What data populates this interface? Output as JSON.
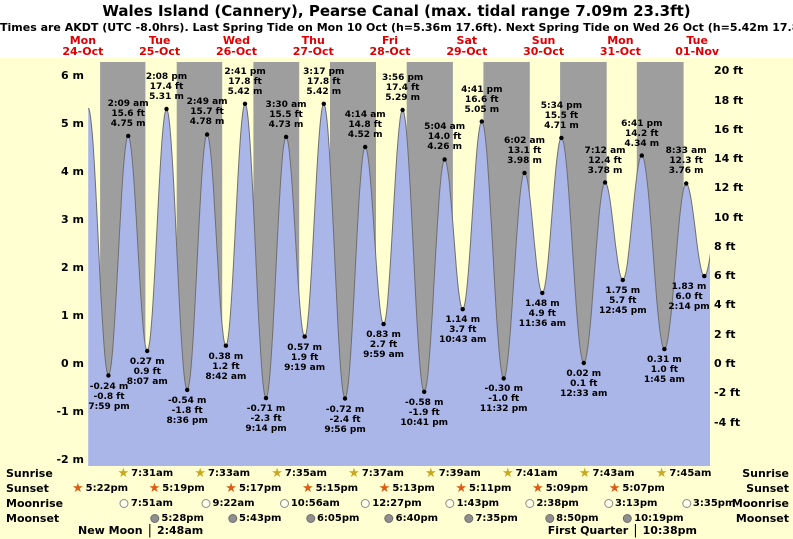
{
  "title": "Wales Island (Cannery), Pearse Canal (max. tidal range 7.09m 23.3ft)",
  "subtitle": "Times are AKDT (UTC -8.0hrs). Last Spring Tide on Mon 10 Oct (h=5.36m 17.6ft). Next Spring Tide on Wed 26 Oct (h=5.42m 17.8ft)",
  "colors": {
    "page_bg": "#ffffff",
    "panel_bg": "#ffffd2",
    "night": "#9e9e9e",
    "tide_fill": "#aab5e8",
    "tide_stroke": "#6f6f6f",
    "day_label": "#dd0000",
    "sunrise_icon": "#c8a820",
    "sunset_icon": "#e05a14",
    "moonrise_icon": "#fffde9",
    "moonset_icon": "#8f8f8f"
  },
  "icons": {
    "sunrise": {
      "name": "sunrise-star-icon",
      "glyph": "★"
    },
    "sunset": {
      "name": "sunset-star-icon",
      "glyph": "★"
    },
    "moonrise": {
      "name": "moonrise-icon",
      "shape": "circle"
    },
    "moonset": {
      "name": "moonset-icon",
      "shape": "circle"
    }
  },
  "chart_data": {
    "type": "area",
    "series_name": "Tide height",
    "title": "Wales Island (Cannery), Pearse Canal tide curve",
    "y_axis_left": {
      "unit": "m",
      "range": [
        -2,
        6
      ],
      "ticks": [
        {
          "v": 6,
          "label": "6 m"
        },
        {
          "v": 5,
          "label": "5 m"
        },
        {
          "v": 4,
          "label": "4 m"
        },
        {
          "v": 3,
          "label": "3 m"
        },
        {
          "v": 2,
          "label": "2 m"
        },
        {
          "v": 1,
          "label": "1 m"
        },
        {
          "v": 0,
          "label": "0 m"
        },
        {
          "v": -1,
          "label": "-1 m"
        },
        {
          "v": -2,
          "label": "-2 m"
        }
      ]
    },
    "y_axis_right": {
      "unit": "ft",
      "range": [
        -4,
        20
      ],
      "ticks": [
        {
          "v": 20,
          "label": "20 ft"
        },
        {
          "v": 18,
          "label": "18 ft"
        },
        {
          "v": 16,
          "label": "16 ft"
        },
        {
          "v": 14,
          "label": "14 ft"
        },
        {
          "v": 12,
          "label": "12 ft"
        },
        {
          "v": 10,
          "label": "10 ft"
        },
        {
          "v": 8,
          "label": "8 ft"
        },
        {
          "v": 6,
          "label": "6 ft"
        },
        {
          "v": 4,
          "label": "4 ft"
        },
        {
          "v": 2,
          "label": "2 ft"
        },
        {
          "v": 0,
          "label": "0 ft"
        },
        {
          "v": -2,
          "label": "-2 ft"
        },
        {
          "v": -4,
          "label": "-4 ft"
        }
      ]
    },
    "x_axis": {
      "days": [
        {
          "name": "Mon",
          "date": "24-Oct"
        },
        {
          "name": "Tue",
          "date": "25-Oct"
        },
        {
          "name": "Wed",
          "date": "26-Oct"
        },
        {
          "name": "Thu",
          "date": "27-Oct"
        },
        {
          "name": "Fri",
          "date": "28-Oct"
        },
        {
          "name": "Sat",
          "date": "29-Oct"
        },
        {
          "name": "Sun",
          "date": "30-Oct"
        },
        {
          "name": "Mon",
          "date": "31-Oct"
        },
        {
          "name": "Tue",
          "date": "01-Nov"
        }
      ]
    },
    "tides": [
      {
        "day": 0,
        "time": "1:40 pm",
        "m": 5.33,
        "type": "high",
        "hidden": true
      },
      {
        "day": 0,
        "time": "7:59 pm",
        "m": -0.24,
        "type": "low",
        "lines": [
          "-0.24 m",
          "-0.8 ft",
          "7:59 pm"
        ]
      },
      {
        "day": 1,
        "time": "2:09 am",
        "m": 4.75,
        "type": "high",
        "lines": [
          "2:09 am",
          "15.6 ft",
          "4.75 m"
        ]
      },
      {
        "day": 1,
        "time": "8:07 am",
        "m": 0.27,
        "type": "low",
        "lines": [
          "0.27 m",
          "0.9 ft",
          "8:07 am"
        ]
      },
      {
        "day": 1,
        "time": "2:08 pm",
        "m": 5.31,
        "type": "high",
        "lines": [
          "2:08 pm",
          "17.4 ft",
          "5.31 m"
        ]
      },
      {
        "day": 1,
        "time": "8:36 pm",
        "m": -0.54,
        "type": "low",
        "lines": [
          "-0.54 m",
          "-1.8 ft",
          "8:36 pm"
        ]
      },
      {
        "day": 2,
        "time": "2:49 am",
        "m": 4.78,
        "type": "high",
        "lines": [
          "2:49 am",
          "15.7 ft",
          "4.78 m"
        ]
      },
      {
        "day": 2,
        "time": "8:42 am",
        "m": 0.38,
        "type": "low",
        "lines": [
          "0.38 m",
          "1.2 ft",
          "8:42 am"
        ]
      },
      {
        "day": 2,
        "time": "2:41 pm",
        "m": 5.42,
        "type": "high",
        "lines": [
          "2:41 pm",
          "17.8 ft",
          "5.42 m"
        ]
      },
      {
        "day": 2,
        "time": "9:14 pm",
        "m": -0.71,
        "type": "low",
        "lines": [
          "-0.71 m",
          "-2.3 ft",
          "9:14 pm"
        ]
      },
      {
        "day": 3,
        "time": "3:30 am",
        "m": 4.73,
        "type": "high",
        "lines": [
          "3:30 am",
          "15.5 ft",
          "4.73 m"
        ]
      },
      {
        "day": 3,
        "time": "9:19 am",
        "m": 0.57,
        "type": "low",
        "lines": [
          "0.57 m",
          "1.9 ft",
          "9:19 am"
        ]
      },
      {
        "day": 3,
        "time": "3:17 pm",
        "m": 5.42,
        "type": "high",
        "lines": [
          "3:17 pm",
          "17.8 ft",
          "5.42 m"
        ]
      },
      {
        "day": 3,
        "time": "9:56 pm",
        "m": -0.72,
        "type": "low",
        "lines": [
          "-0.72 m",
          "-2.4 ft",
          "9:56 pm"
        ]
      },
      {
        "day": 4,
        "time": "4:14 am",
        "m": 4.52,
        "type": "high",
        "lines": [
          "4:14 am",
          "14.8 ft",
          "4.52 m"
        ]
      },
      {
        "day": 4,
        "time": "9:59 am",
        "m": 0.83,
        "type": "low",
        "lines": [
          "0.83 m",
          "2.7 ft",
          "9:59 am"
        ]
      },
      {
        "day": 4,
        "time": "3:56 pm",
        "m": 5.29,
        "type": "high",
        "lines": [
          "3:56 pm",
          "17.4 ft",
          "5.29 m"
        ]
      },
      {
        "day": 4,
        "time": "10:41 pm",
        "m": -0.58,
        "type": "low",
        "lines": [
          "-0.58 m",
          "-1.9 ft",
          "10:41 pm"
        ]
      },
      {
        "day": 5,
        "time": "5:04 am",
        "m": 4.26,
        "type": "high",
        "lines": [
          "5:04 am",
          "14.0 ft",
          "4.26 m"
        ]
      },
      {
        "day": 5,
        "time": "10:43 am",
        "m": 1.14,
        "type": "low",
        "lines": [
          "1.14 m",
          "3.7 ft",
          "10:43 am"
        ]
      },
      {
        "day": 5,
        "time": "4:41 pm",
        "m": 5.05,
        "type": "high",
        "lines": [
          "4:41 pm",
          "16.6 ft",
          "5.05 m"
        ]
      },
      {
        "day": 5,
        "time": "11:32 pm",
        "m": -0.3,
        "type": "low",
        "lines": [
          "-0.30 m",
          "-1.0 ft",
          "11:32 pm"
        ]
      },
      {
        "day": 6,
        "time": "6:02 am",
        "m": 3.98,
        "type": "high",
        "lines": [
          "6:02 am",
          "13.1 ft",
          "3.98 m"
        ]
      },
      {
        "day": 6,
        "time": "11:36 am",
        "m": 1.48,
        "type": "low",
        "lines": [
          "1.48 m",
          "4.9 ft",
          "11:36 am"
        ]
      },
      {
        "day": 6,
        "time": "5:34 pm",
        "m": 4.71,
        "type": "high",
        "lines": [
          "5:34 pm",
          "15.5 ft",
          "4.71 m"
        ]
      },
      {
        "day": 7,
        "time": "12:33 am",
        "m": 0.02,
        "type": "low",
        "lines": [
          "0.02 m",
          "0.1 ft",
          "12:33 am"
        ]
      },
      {
        "day": 7,
        "time": "7:12 am",
        "m": 3.78,
        "type": "high",
        "lines": [
          "7:12 am",
          "12.4 ft",
          "3.78 m"
        ]
      },
      {
        "day": 7,
        "time": "12:45 pm",
        "m": 1.75,
        "type": "low",
        "lines": [
          "1.75 m",
          "5.7 ft",
          "12:45 pm"
        ]
      },
      {
        "day": 7,
        "time": "6:41 pm",
        "m": 4.34,
        "type": "high",
        "lines": [
          "6:41 pm",
          "14.2 ft",
          "4.34 m"
        ]
      },
      {
        "day": 8,
        "time": "1:45 am",
        "m": 0.31,
        "type": "low",
        "lines": [
          "0.31 m",
          "1.0 ft",
          "1:45 am"
        ]
      },
      {
        "day": 8,
        "time": "8:33 am",
        "m": 3.76,
        "type": "high",
        "lines": [
          "8:33 am",
          "12.3 ft",
          "3.76 m"
        ]
      },
      {
        "day": 8,
        "time": "2:14 pm",
        "m": 1.83,
        "type": "low",
        "lines": [
          "1.83 m",
          "6.0 ft",
          "2:14 pm"
        ]
      },
      {
        "day": 8,
        "time": "8:55 pm",
        "m": 4.33,
        "type": "high",
        "hidden": true
      }
    ],
    "sun_moon": {
      "sunrise": [
        {
          "day": 1,
          "time": "7:31am"
        },
        {
          "day": 2,
          "time": "7:33am"
        },
        {
          "day": 3,
          "time": "7:35am"
        },
        {
          "day": 4,
          "time": "7:37am"
        },
        {
          "day": 5,
          "time": "7:39am"
        },
        {
          "day": 6,
          "time": "7:41am"
        },
        {
          "day": 7,
          "time": "7:43am"
        },
        {
          "day": 8,
          "time": "7:45am"
        }
      ],
      "sunset": [
        {
          "day": 0,
          "time": "5:22pm"
        },
        {
          "day": 1,
          "time": "5:19pm"
        },
        {
          "day": 2,
          "time": "5:17pm"
        },
        {
          "day": 3,
          "time": "5:15pm"
        },
        {
          "day": 4,
          "time": "5:13pm"
        },
        {
          "day": 5,
          "time": "5:11pm"
        },
        {
          "day": 6,
          "time": "5:09pm"
        },
        {
          "day": 7,
          "time": "5:07pm"
        }
      ],
      "moonrise": [
        {
          "day": 1,
          "time": "7:51am"
        },
        {
          "day": 2,
          "time": "9:22am"
        },
        {
          "day": 3,
          "time": "10:56am"
        },
        {
          "day": 4,
          "time": "12:27pm"
        },
        {
          "day": 5,
          "time": "1:43pm"
        },
        {
          "day": 6,
          "time": "2:38pm"
        },
        {
          "day": 7,
          "time": "3:13pm"
        },
        {
          "day": 8,
          "time": "3:35pm"
        }
      ],
      "moonset": [
        {
          "day": 1,
          "time": "5:28pm"
        },
        {
          "day": 2,
          "time": "5:43pm"
        },
        {
          "day": 3,
          "time": "6:05pm"
        },
        {
          "day": 4,
          "time": "6:40pm"
        },
        {
          "day": 5,
          "time": "7:35pm"
        },
        {
          "day": 6,
          "time": "8:50pm"
        },
        {
          "day": 7,
          "time": "10:19pm"
        }
      ]
    }
  },
  "bottom": {
    "rows": [
      {
        "key": "sunrise",
        "label": "Sunrise"
      },
      {
        "key": "sunset",
        "label": "Sunset"
      },
      {
        "key": "moonrise",
        "label": "Moonrise"
      },
      {
        "key": "moonset",
        "label": "Moonset"
      }
    ],
    "phase_separator": "|",
    "phases": [
      {
        "name": "New Moon",
        "time": "2:48am",
        "side": "left"
      },
      {
        "name": "First Quarter",
        "time": "10:38pm",
        "side": "right"
      }
    ]
  }
}
